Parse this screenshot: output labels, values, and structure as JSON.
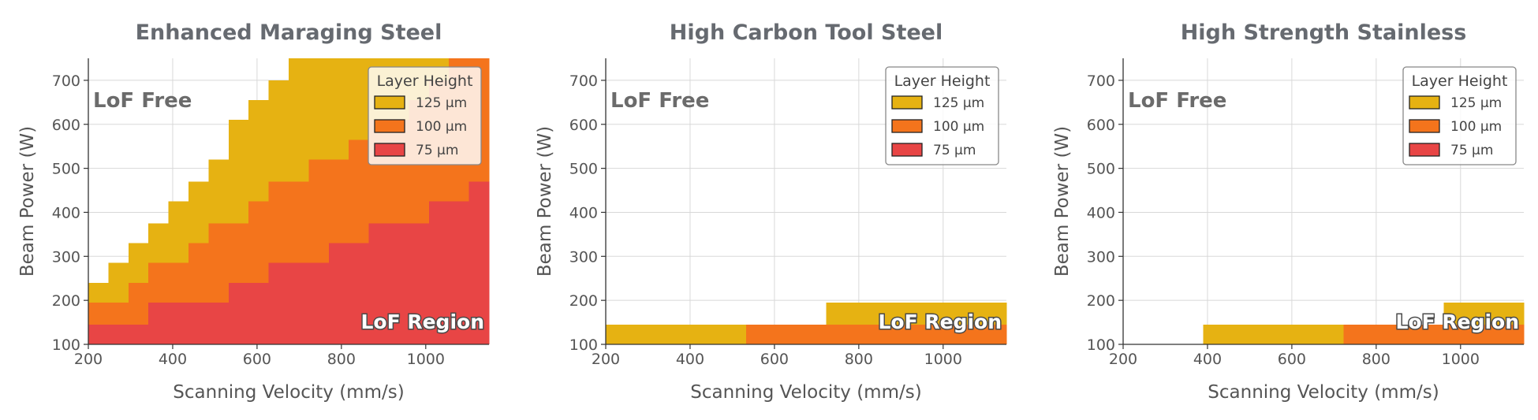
{
  "colors": {
    "h125": "#e6b212",
    "h100": "#f4741c",
    "h75": "#e84545"
  },
  "chart_data": [
    {
      "type": "area",
      "title": "Enhanced Maraging Steel",
      "xlabel": "Scanning Velocity (mm/s)",
      "ylabel": "Beam Power (W)",
      "xlim": [
        200,
        1150
      ],
      "ylim": [
        100,
        750
      ],
      "xticks": [
        "200",
        "400",
        "600",
        "800",
        "1000"
      ],
      "yticks": [
        "100",
        "200",
        "300",
        "400",
        "500",
        "600",
        "700"
      ],
      "annotations": {
        "lof_free": "LoF Free",
        "lof_region": "LoF Region"
      },
      "legend": {
        "title": "Layer Height",
        "position": "top-right",
        "entries": [
          "125 µm",
          "100 µm",
          "75 µm"
        ]
      },
      "bin_width": 47.5,
      "series": [
        {
          "name": "125 µm",
          "color_key": "h125",
          "values": [
            240,
            285,
            330,
            375,
            425,
            470,
            520,
            610,
            655,
            700,
            750,
            750,
            750,
            750,
            750,
            750,
            750,
            750,
            750,
            750
          ]
        },
        {
          "name": "100 µm",
          "color_key": "h100",
          "values": [
            195,
            195,
            240,
            285,
            285,
            330,
            375,
            375,
            425,
            470,
            470,
            520,
            520,
            565,
            610,
            610,
            655,
            700,
            750,
            750
          ]
        },
        {
          "name": "75 µm",
          "color_key": "h75",
          "values": [
            145,
            145,
            145,
            195,
            195,
            195,
            195,
            240,
            240,
            285,
            285,
            285,
            330,
            330,
            375,
            375,
            375,
            425,
            425,
            470
          ]
        }
      ]
    },
    {
      "type": "area",
      "title": "High Carbon Tool Steel",
      "xlabel": "Scanning Velocity (mm/s)",
      "ylabel": "Beam Power (W)",
      "xlim": [
        200,
        1150
      ],
      "ylim": [
        100,
        750
      ],
      "xticks": [
        "200",
        "400",
        "600",
        "800",
        "1000"
      ],
      "yticks": [
        "100",
        "200",
        "300",
        "400",
        "500",
        "600",
        "700"
      ],
      "annotations": {
        "lof_free": "LoF Free",
        "lof_region": "LoF Region"
      },
      "legend": {
        "title": "Layer Height",
        "position": "top-right",
        "entries": [
          "125 µm",
          "100 µm",
          "75 µm"
        ]
      },
      "bin_width": 47.5,
      "series": [
        {
          "name": "125 µm",
          "color_key": "h125",
          "values": [
            145,
            145,
            145,
            145,
            145,
            145,
            145,
            145,
            145,
            145,
            145,
            195,
            195,
            195,
            195,
            195,
            195,
            195,
            195,
            195
          ]
        },
        {
          "name": "100 µm",
          "color_key": "h100",
          "values": [
            100,
            100,
            100,
            100,
            100,
            100,
            100,
            145,
            145,
            145,
            145,
            145,
            145,
            145,
            145,
            145,
            145,
            145,
            145,
            145
          ]
        },
        {
          "name": "75 µm",
          "color_key": "h75",
          "values": [
            100,
            100,
            100,
            100,
            100,
            100,
            100,
            100,
            100,
            100,
            100,
            100,
            100,
            100,
            100,
            100,
            100,
            100,
            100,
            100
          ]
        }
      ]
    },
    {
      "type": "area",
      "title": "High Strength Stainless",
      "xlabel": "Scanning Velocity (mm/s)",
      "ylabel": "Beam Power (W)",
      "xlim": [
        200,
        1150
      ],
      "ylim": [
        100,
        750
      ],
      "xticks": [
        "200",
        "400",
        "600",
        "800",
        "1000"
      ],
      "yticks": [
        "100",
        "200",
        "300",
        "400",
        "500",
        "600",
        "700"
      ],
      "annotations": {
        "lof_free": "LoF Free",
        "lof_region": "LoF Region"
      },
      "legend": {
        "title": "Layer Height",
        "position": "top-right",
        "entries": [
          "125 µm",
          "100 µm",
          "75 µm"
        ]
      },
      "bin_width": 47.5,
      "series": [
        {
          "name": "125 µm",
          "color_key": "h125",
          "values": [
            100,
            100,
            100,
            100,
            145,
            145,
            145,
            145,
            145,
            145,
            145,
            145,
            145,
            145,
            145,
            145,
            195,
            195,
            195,
            195
          ]
        },
        {
          "name": "100 µm",
          "color_key": "h100",
          "values": [
            100,
            100,
            100,
            100,
            100,
            100,
            100,
            100,
            100,
            100,
            100,
            145,
            145,
            145,
            145,
            145,
            145,
            145,
            145,
            145
          ]
        },
        {
          "name": "75 µm",
          "color_key": "h75",
          "values": [
            100,
            100,
            100,
            100,
            100,
            100,
            100,
            100,
            100,
            100,
            100,
            100,
            100,
            100,
            100,
            100,
            100,
            100,
            100,
            100
          ]
        }
      ]
    }
  ]
}
